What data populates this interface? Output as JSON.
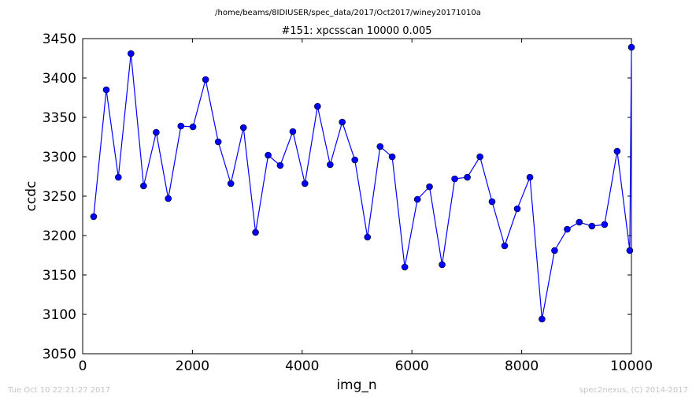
{
  "figure": {
    "suptitle": "/home/beams/8IDIUSER/spec_data/2017/Oct2017/winey20171010a",
    "footer_left": "Tue Oct 10 22:21:27 2017",
    "footer_right": "spec2nexus, (C) 2014-2017"
  },
  "chart_data": {
    "type": "line",
    "title": "#151: xpcsscan 10000 0.005",
    "xlabel": "img_n",
    "ylabel": "ccdc",
    "xlim": [
      0,
      10000
    ],
    "ylim": [
      3050,
      3450
    ],
    "xticks": [
      0,
      2000,
      4000,
      6000,
      8000,
      10000
    ],
    "yticks": [
      3050,
      3100,
      3150,
      3200,
      3250,
      3300,
      3350,
      3400,
      3450
    ],
    "grid": false,
    "legend": "none",
    "marker": "circle",
    "color": "#0000ff",
    "series": [
      {
        "x": [
          200,
          430,
          650,
          880,
          1110,
          1340,
          1560,
          1790,
          2010,
          2240,
          2470,
          2700,
          2930,
          3150,
          3380,
          3600,
          3830,
          4050,
          4280,
          4510,
          4730,
          4960,
          5190,
          5420,
          5640,
          5870,
          6100,
          6320,
          6550,
          6780,
          7010,
          7240,
          7460,
          7690,
          7920,
          8150,
          8370,
          8600,
          8830,
          9050,
          9280,
          9510,
          9740,
          9970,
          10000
        ],
        "y": [
          3224,
          3385,
          3274,
          3431,
          3263,
          3331,
          3247,
          3339,
          3338,
          3398,
          3319,
          3266,
          3337,
          3204,
          3302,
          3289,
          3332,
          3266,
          3364,
          3290,
          3344,
          3296,
          3198,
          3313,
          3300,
          3160,
          3246,
          3262,
          3163,
          3272,
          3274,
          3300,
          3243,
          3187,
          3234,
          3274,
          3094,
          3181,
          3208,
          3217,
          3212,
          3214,
          3307,
          3181,
          3439
        ]
      }
    ]
  }
}
